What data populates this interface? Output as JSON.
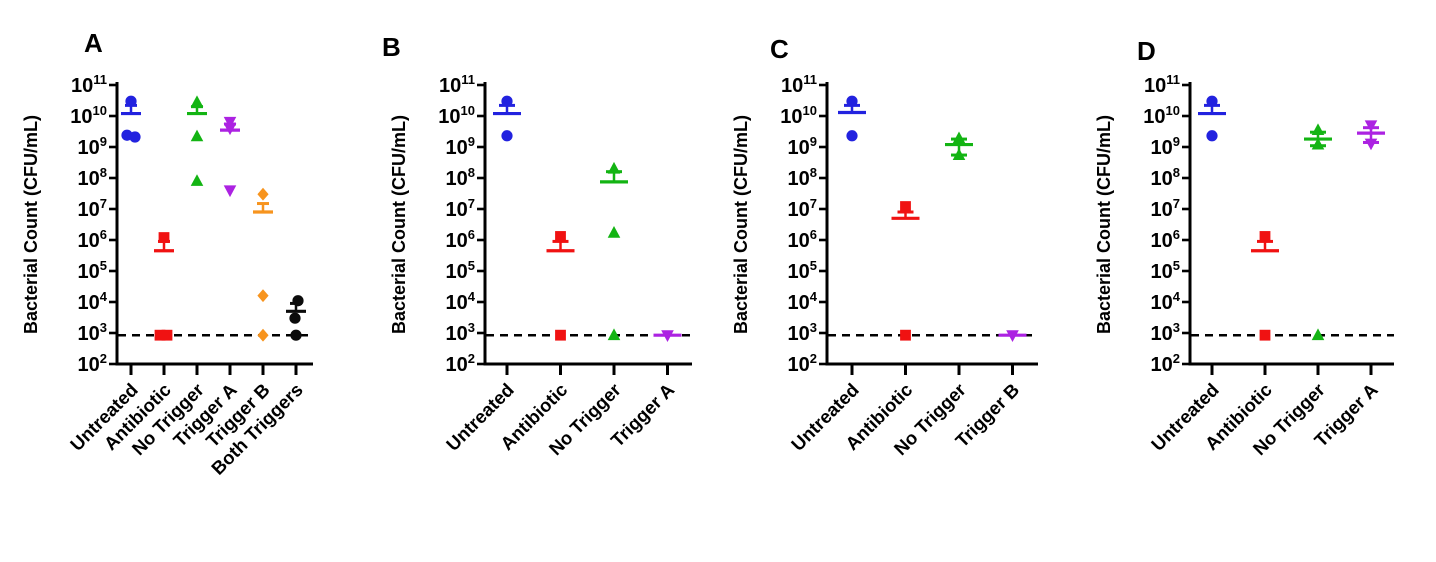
{
  "figure": {
    "background": "#ffffff"
  },
  "y_axis": {
    "label": "Bacterial Count (CFU/mL)",
    "tick_base": "10",
    "tick_exponents": [
      2,
      3,
      4,
      5,
      6,
      7,
      8,
      9,
      10,
      11
    ],
    "ylim": [
      100.0,
      100000000000.0
    ],
    "scale": "log"
  },
  "chart_data": [
    {
      "type": "scatter",
      "panel_label": "A",
      "ylabel": "Bacterial Count (CFU/mL)",
      "detection_limit": 850,
      "grid": false,
      "groups": [
        {
          "label": "Untreated",
          "marker": "circle",
          "color": "#2222DF",
          "points": [
            30000000000.0,
            2400000000.0,
            2100000000.0
          ],
          "dx": [
            0,
            -4,
            4
          ],
          "mean": 12000000000.0,
          "err_hi": 22000000000.0
        },
        {
          "label": "Antibiotic",
          "marker": "square",
          "color": "#F01212",
          "points": [
            1200000.0,
            850.0,
            850.0
          ],
          "dx": [
            0,
            -4,
            3
          ],
          "mean": 450000.0,
          "err_hi": 900000.0
        },
        {
          "label": "No Trigger",
          "marker": "triangle-up",
          "color": "#13B413",
          "points": [
            28000000000.0,
            2200000000.0,
            80000000.0
          ],
          "dx": [
            0,
            0,
            0
          ],
          "mean": 12000000000.0,
          "err_hi": 20000000000.0
        },
        {
          "label": "Trigger A",
          "marker": "triangle-down",
          "color": "#AC22E2",
          "points": [
            6500000000.0,
            4000000000.0,
            40000000.0
          ],
          "dx": [
            0,
            0,
            0
          ],
          "mean": 3500000000.0,
          "err_hi": 5500000000.0
        },
        {
          "label": "Trigger B",
          "marker": "diamond",
          "color": "#F7941E",
          "points": [
            30000000.0,
            16000.0,
            850.0
          ],
          "dx": [
            0,
            0,
            0
          ],
          "mean": 8000000.0,
          "err_hi": 15000000.0
        },
        {
          "label": "Both Triggers",
          "marker": "circle",
          "color": "#0B0B0B",
          "points": [
            11000.0,
            3000.0,
            850.0
          ],
          "dx": [
            2,
            -1,
            0
          ],
          "mean": 5000.0,
          "err_hi": 9000.0
        }
      ]
    },
    {
      "type": "scatter",
      "panel_label": "B",
      "ylabel": "Bacterial Count (CFU/mL)",
      "detection_limit": 850,
      "grid": false,
      "groups": [
        {
          "label": "Untreated",
          "marker": "circle",
          "color": "#2222DF",
          "points": [
            30000000000.0,
            2300000000.0
          ],
          "dx": [
            0,
            0
          ],
          "mean": 12000000000.0,
          "err_hi": 22000000000.0
        },
        {
          "label": "Antibiotic",
          "marker": "square",
          "color": "#F01212",
          "points": [
            1300000.0,
            850.0
          ],
          "dx": [
            0,
            0
          ],
          "mean": 450000.0,
          "err_hi": 900000.0
        },
        {
          "label": "No Trigger",
          "marker": "triangle-up",
          "color": "#13B413",
          "points": [
            200000000.0,
            1700000.0,
            850.0
          ],
          "dx": [
            0,
            0,
            0
          ],
          "mean": 75000000.0,
          "err_hi": 160000000.0
        },
        {
          "label": "Trigger A",
          "marker": "triangle-down",
          "color": "#AC22E2",
          "points": [
            850.0
          ],
          "dx": [
            0
          ],
          "mean": 850.0
        }
      ]
    },
    {
      "type": "scatter",
      "panel_label": "C",
      "ylabel": "Bacterial Count (CFU/mL)",
      "detection_limit": 850,
      "grid": false,
      "groups": [
        {
          "label": "Untreated",
          "marker": "circle",
          "color": "#2222DF",
          "points": [
            30000000000.0,
            2300000000.0
          ],
          "dx": [
            0,
            0
          ],
          "mean": 13000000000.0,
          "err_hi": 22000000000.0
        },
        {
          "label": "Antibiotic",
          "marker": "square",
          "color": "#F01212",
          "points": [
            12000000.0,
            850.0
          ],
          "dx": [
            0,
            0
          ],
          "mean": 5000000.0,
          "err_hi": 8000000.0
        },
        {
          "label": "No Trigger",
          "marker": "triangle-up",
          "color": "#13B413",
          "points": [
            1900000000.0,
            550000000.0
          ],
          "dx": [
            0,
            0
          ],
          "mean": 1200000000.0,
          "err_hi": 1800000000.0,
          "err_lo": 550000000.0
        },
        {
          "label": "Trigger B",
          "marker": "triangle-down",
          "color": "#AC22E2",
          "points": [
            850.0
          ],
          "dx": [
            0
          ],
          "mean": 850.0
        }
      ]
    },
    {
      "type": "scatter",
      "panel_label": "D",
      "ylabel": "Bacterial Count (CFU/mL)",
      "detection_limit": 850,
      "grid": false,
      "groups": [
        {
          "label": "Untreated",
          "marker": "circle",
          "color": "#2222DF",
          "points": [
            30000000000.0,
            2300000000.0
          ],
          "dx": [
            0,
            0
          ],
          "mean": 12000000000.0,
          "err_hi": 22000000000.0
        },
        {
          "label": "Antibiotic",
          "marker": "square",
          "color": "#F01212",
          "points": [
            1300000.0,
            850.0
          ],
          "dx": [
            0,
            0
          ],
          "mean": 450000.0,
          "err_hi": 900000.0
        },
        {
          "label": "No Trigger",
          "marker": "triangle-up",
          "color": "#13B413",
          "points": [
            3500000000.0,
            1200000000.0,
            850.0
          ],
          "dx": [
            0,
            0,
            0
          ],
          "mean": 1800000000.0,
          "err_hi": 3000000000.0,
          "err_lo": 1100000000.0
        },
        {
          "label": "Trigger A",
          "marker": "triangle-down",
          "color": "#AC22E2",
          "points": [
            5000000000.0,
            1300000000.0
          ],
          "dx": [
            0,
            0
          ],
          "mean": 2800000000.0,
          "err_hi": 4200000000.0,
          "err_lo": 1400000000.0
        }
      ]
    }
  ]
}
